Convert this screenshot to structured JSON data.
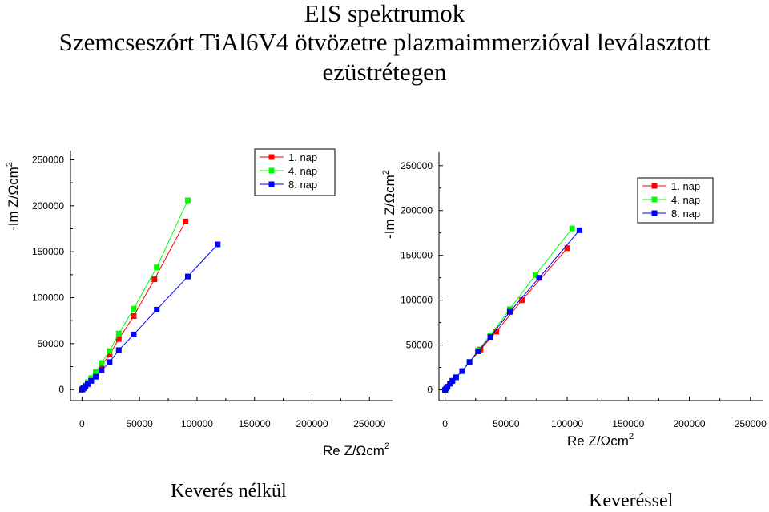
{
  "title": {
    "line1": "EIS spektrumok",
    "line2": "Szemcseszórt TiAl6V4 ötvözetre plazmaimmerzióval leválasztott",
    "line3": "ezüstrétegen"
  },
  "captions": {
    "left": "Keverés nélkül",
    "right": "Keveréssel"
  },
  "colors": {
    "series1": "#ff0000",
    "series2": "#00ff00",
    "series3": "#0000ff"
  },
  "chart_data": [
    {
      "type": "scatter",
      "name": "Keverés nélkül",
      "xlabel": "Re Z/Ωcm",
      "ylabel": "-Im Z/Ωcm",
      "unit_superscript": "2",
      "xlim": [
        -10000,
        270000
      ],
      "ylim": [
        -12000,
        260000
      ],
      "xticks": [
        0,
        50000,
        100000,
        150000,
        200000,
        250000
      ],
      "yticks": [
        0,
        50000,
        100000,
        150000,
        200000,
        250000
      ],
      "legend_position": "top-center",
      "series": [
        {
          "name": "1. nap",
          "color": "#ff0000",
          "x": [
            0,
            600,
            1500,
            3000,
            5000,
            8000,
            12000,
            17000,
            24000,
            32000,
            45000,
            63000,
            90000
          ],
          "y": [
            0,
            800,
            2000,
            4000,
            7000,
            11000,
            17000,
            26000,
            38000,
            55000,
            80000,
            120000,
            183000
          ]
        },
        {
          "name": "4. nap",
          "color": "#00ff00",
          "x": [
            0,
            600,
            1500,
            3000,
            5000,
            8000,
            12000,
            17000,
            24000,
            32000,
            45000,
            65000,
            92000
          ],
          "y": [
            0,
            900,
            2200,
            4500,
            8000,
            12500,
            19000,
            29000,
            42000,
            61000,
            88000,
            133000,
            206000
          ]
        },
        {
          "name": "8. nap",
          "color": "#0000ff",
          "x": [
            0,
            600,
            1500,
            3000,
            5000,
            8000,
            12000,
            17000,
            24000,
            32000,
            45000,
            65000,
            92000,
            118000
          ],
          "y": [
            0,
            700,
            1800,
            3600,
            6000,
            9500,
            14000,
            21000,
            30000,
            43000,
            60000,
            87000,
            123000,
            158000
          ]
        }
      ]
    },
    {
      "type": "scatter",
      "name": "Keveréssel",
      "xlabel": "Re Z/Ωcm",
      "ylabel": "-Im Z/Ωcm",
      "unit_superscript": "2",
      "xlim": [
        -5000,
        260000
      ],
      "ylim": [
        -12000,
        265000
      ],
      "xticks": [
        0,
        50000,
        100000,
        150000,
        200000,
        250000
      ],
      "yticks": [
        0,
        50000,
        100000,
        150000,
        200000,
        250000
      ],
      "legend_position": "top-right",
      "series": [
        {
          "name": "1. nap",
          "color": "#ff0000",
          "x": [
            0,
            1000,
            2000,
            4000,
            6000,
            9000,
            14000,
            20000,
            29000,
            42000,
            63000,
            100000
          ],
          "y": [
            0,
            1500,
            3500,
            7000,
            10000,
            14000,
            21000,
            31000,
            45000,
            65000,
            100000,
            158000
          ]
        },
        {
          "name": "4. nap",
          "color": "#00ff00",
          "x": [
            0,
            1000,
            2000,
            4000,
            6000,
            9000,
            14000,
            20000,
            27000,
            37000,
            53000,
            74000,
            104000
          ],
          "y": [
            0,
            1500,
            3500,
            7000,
            10000,
            14000,
            21000,
            31000,
            44000,
            61000,
            90000,
            128000,
            180000
          ]
        },
        {
          "name": "8. nap",
          "color": "#0000ff",
          "x": [
            0,
            1000,
            2000,
            4000,
            6000,
            9000,
            14000,
            20000,
            27000,
            37000,
            53000,
            77000,
            110000
          ],
          "y": [
            0,
            1500,
            3500,
            7000,
            10000,
            14000,
            21000,
            31000,
            43000,
            59000,
            87000,
            125000,
            178000
          ]
        }
      ]
    }
  ]
}
